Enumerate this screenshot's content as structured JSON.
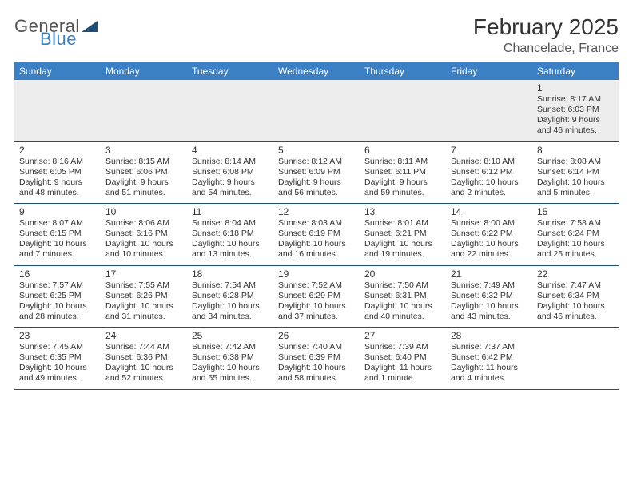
{
  "logo": {
    "word1": "General",
    "word2": "Blue",
    "tri_color": "#1f4e79"
  },
  "title": "February 2025",
  "location": "Chancelade, France",
  "header_bg": "#3b7fc4",
  "border_color": "#1f4e79",
  "dow": [
    "Sunday",
    "Monday",
    "Tuesday",
    "Wednesday",
    "Thursday",
    "Friday",
    "Saturday"
  ],
  "weeks": [
    [
      null,
      null,
      null,
      null,
      null,
      null,
      {
        "d": "1",
        "sr": "8:17 AM",
        "ss": "6:03 PM",
        "dl": "9 hours and 46 minutes."
      }
    ],
    [
      {
        "d": "2",
        "sr": "8:16 AM",
        "ss": "6:05 PM",
        "dl": "9 hours and 48 minutes."
      },
      {
        "d": "3",
        "sr": "8:15 AM",
        "ss": "6:06 PM",
        "dl": "9 hours and 51 minutes."
      },
      {
        "d": "4",
        "sr": "8:14 AM",
        "ss": "6:08 PM",
        "dl": "9 hours and 54 minutes."
      },
      {
        "d": "5",
        "sr": "8:12 AM",
        "ss": "6:09 PM",
        "dl": "9 hours and 56 minutes."
      },
      {
        "d": "6",
        "sr": "8:11 AM",
        "ss": "6:11 PM",
        "dl": "9 hours and 59 minutes."
      },
      {
        "d": "7",
        "sr": "8:10 AM",
        "ss": "6:12 PM",
        "dl": "10 hours and 2 minutes."
      },
      {
        "d": "8",
        "sr": "8:08 AM",
        "ss": "6:14 PM",
        "dl": "10 hours and 5 minutes."
      }
    ],
    [
      {
        "d": "9",
        "sr": "8:07 AM",
        "ss": "6:15 PM",
        "dl": "10 hours and 7 minutes."
      },
      {
        "d": "10",
        "sr": "8:06 AM",
        "ss": "6:16 PM",
        "dl": "10 hours and 10 minutes."
      },
      {
        "d": "11",
        "sr": "8:04 AM",
        "ss": "6:18 PM",
        "dl": "10 hours and 13 minutes."
      },
      {
        "d": "12",
        "sr": "8:03 AM",
        "ss": "6:19 PM",
        "dl": "10 hours and 16 minutes."
      },
      {
        "d": "13",
        "sr": "8:01 AM",
        "ss": "6:21 PM",
        "dl": "10 hours and 19 minutes."
      },
      {
        "d": "14",
        "sr": "8:00 AM",
        "ss": "6:22 PM",
        "dl": "10 hours and 22 minutes."
      },
      {
        "d": "15",
        "sr": "7:58 AM",
        "ss": "6:24 PM",
        "dl": "10 hours and 25 minutes."
      }
    ],
    [
      {
        "d": "16",
        "sr": "7:57 AM",
        "ss": "6:25 PM",
        "dl": "10 hours and 28 minutes."
      },
      {
        "d": "17",
        "sr": "7:55 AM",
        "ss": "6:26 PM",
        "dl": "10 hours and 31 minutes."
      },
      {
        "d": "18",
        "sr": "7:54 AM",
        "ss": "6:28 PM",
        "dl": "10 hours and 34 minutes."
      },
      {
        "d": "19",
        "sr": "7:52 AM",
        "ss": "6:29 PM",
        "dl": "10 hours and 37 minutes."
      },
      {
        "d": "20",
        "sr": "7:50 AM",
        "ss": "6:31 PM",
        "dl": "10 hours and 40 minutes."
      },
      {
        "d": "21",
        "sr": "7:49 AM",
        "ss": "6:32 PM",
        "dl": "10 hours and 43 minutes."
      },
      {
        "d": "22",
        "sr": "7:47 AM",
        "ss": "6:34 PM",
        "dl": "10 hours and 46 minutes."
      }
    ],
    [
      {
        "d": "23",
        "sr": "7:45 AM",
        "ss": "6:35 PM",
        "dl": "10 hours and 49 minutes."
      },
      {
        "d": "24",
        "sr": "7:44 AM",
        "ss": "6:36 PM",
        "dl": "10 hours and 52 minutes."
      },
      {
        "d": "25",
        "sr": "7:42 AM",
        "ss": "6:38 PM",
        "dl": "10 hours and 55 minutes."
      },
      {
        "d": "26",
        "sr": "7:40 AM",
        "ss": "6:39 PM",
        "dl": "10 hours and 58 minutes."
      },
      {
        "d": "27",
        "sr": "7:39 AM",
        "ss": "6:40 PM",
        "dl": "11 hours and 1 minute."
      },
      {
        "d": "28",
        "sr": "7:37 AM",
        "ss": "6:42 PM",
        "dl": "11 hours and 4 minutes."
      },
      null
    ]
  ]
}
